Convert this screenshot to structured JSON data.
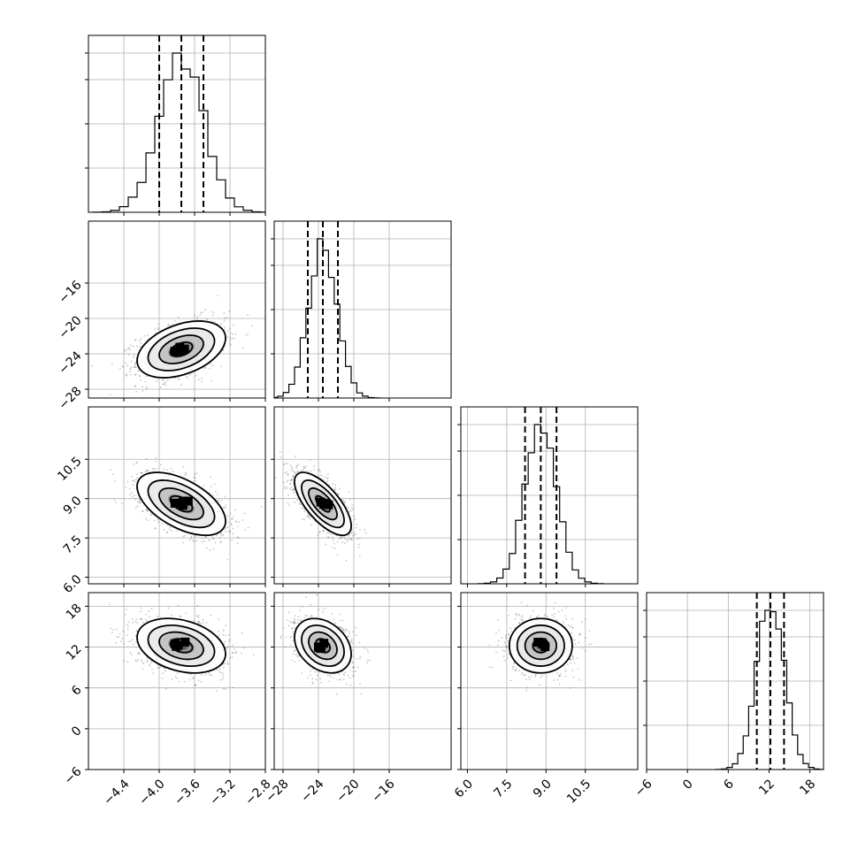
{
  "chart_data": {
    "type": "corner",
    "parameters": [
      {
        "index": 0,
        "range": [
          -4.8,
          -2.8
        ],
        "ticks": [
          -4.4,
          -4.0,
          -3.6,
          -3.2,
          -2.8
        ],
        "tick_labels": [
          "−4.4",
          "−4.0",
          "−3.6",
          "−3.2",
          "−2.8"
        ],
        "mean": -3.75,
        "std": 0.25,
        "quantiles": [
          -4.0,
          -3.75,
          -3.5
        ]
      },
      {
        "index": 1,
        "range": [
          -29.0,
          -9.0
        ],
        "ticks": [
          -28,
          -24,
          -20,
          -16
        ],
        "tick_labels": [
          "−28",
          "−24",
          "−20",
          "−16"
        ],
        "mean": -23.5,
        "std": 1.6,
        "quantiles": [
          -25.2,
          -23.5,
          -21.8
        ]
      },
      {
        "index": 2,
        "range": [
          5.75,
          12.5
        ],
        "ticks": [
          6.0,
          7.5,
          9.0,
          10.5
        ],
        "tick_labels": [
          "6.0",
          "7.5",
          "9.0",
          "10.5"
        ],
        "mean": 8.8,
        "std": 0.6,
        "quantiles": [
          8.2,
          8.8,
          9.4
        ]
      },
      {
        "index": 3,
        "range": [
          -6,
          20
        ],
        "ticks": [
          -6,
          0,
          6,
          12,
          18
        ],
        "tick_labels": [
          "−6",
          "0",
          "6",
          "12",
          "18"
        ],
        "mean": 12.2,
        "std": 2.0,
        "quantiles": [
          10.2,
          12.2,
          14.2
        ]
      }
    ],
    "correlations": [
      {
        "pair": [
          0,
          1
        ],
        "rho": 0.4
      },
      {
        "pair": [
          0,
          2
        ],
        "rho": -0.55
      },
      {
        "pair": [
          0,
          3
        ],
        "rho": -0.3
      },
      {
        "pair": [
          1,
          2
        ],
        "rho": -0.7
      },
      {
        "pair": [
          1,
          3
        ],
        "rho": -0.3
      },
      {
        "pair": [
          2,
          3
        ],
        "rho": 0.0
      }
    ],
    "histogram_bins": 20,
    "contour_levels_sigma": [
      0.5,
      1.0,
      1.5,
      2.0
    ],
    "title": "",
    "axis_labels": [
      "",
      "",
      "",
      ""
    ],
    "grid": true
  }
}
